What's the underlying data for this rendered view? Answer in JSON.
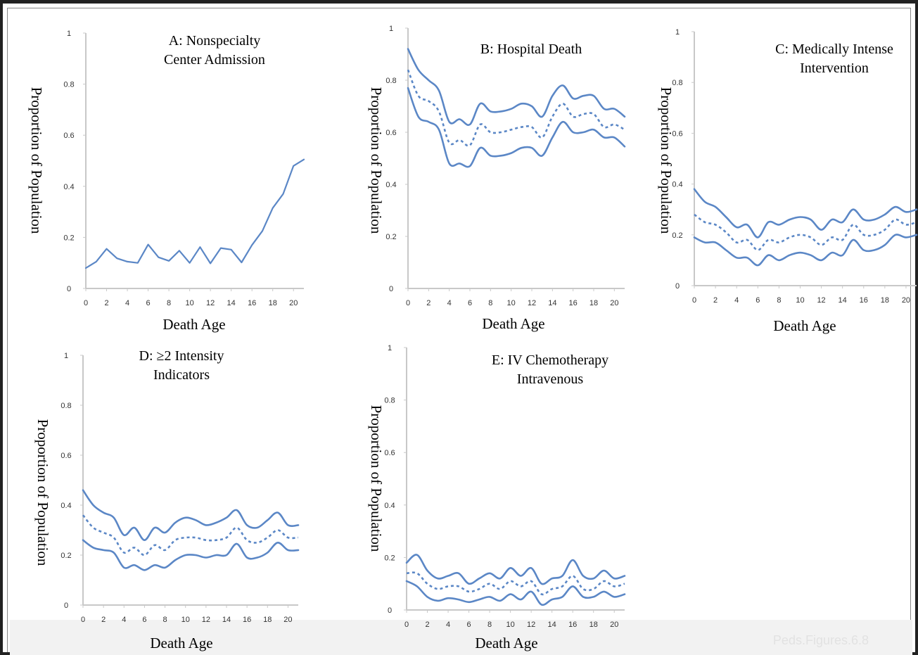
{
  "source_label": "Peds.Figures.6.8",
  "colors": {
    "series": "#5b87c6",
    "axis": "#c8c8c8",
    "text": "#000000"
  },
  "chart_data": [
    {
      "id": "A",
      "type": "line",
      "title": "A: Nonspecialty\nCenter Admission",
      "xlabel": "Death Age",
      "ylabel": "Proportion of Population",
      "xlim": [
        0,
        21
      ],
      "ylim": [
        0,
        1
      ],
      "x_ticks": [
        0,
        2,
        4,
        6,
        8,
        10,
        12,
        14,
        16,
        18,
        20
      ],
      "y_ticks": [
        0,
        0.2,
        0.4,
        0.6,
        0.8,
        1
      ],
      "y_tick_labels": [
        "0",
        "0.2",
        "0.4",
        "0.6",
        "0.8",
        "1"
      ],
      "x": [
        0,
        1,
        2,
        3,
        4,
        5,
        6,
        7,
        8,
        9,
        10,
        11,
        12,
        13,
        14,
        15,
        16,
        17,
        18,
        19,
        20,
        21
      ],
      "series": [
        {
          "values": [
            0.08,
            0.105,
            0.155,
            0.118,
            0.105,
            0.1,
            0.172,
            0.122,
            0.108,
            0.148,
            0.1,
            0.162,
            0.098,
            0.158,
            0.152,
            0.102,
            0.17,
            0.225,
            0.315,
            0.37,
            0.48,
            0.505
          ],
          "style": "solid"
        }
      ]
    },
    {
      "id": "B",
      "type": "line",
      "title": "B:  Hospital Death",
      "xlabel": "Death Age",
      "ylabel": "Proportion of Population",
      "xlim": [
        0,
        21
      ],
      "ylim": [
        0,
        1
      ],
      "x_ticks": [
        0,
        2,
        4,
        6,
        8,
        10,
        12,
        14,
        16,
        18,
        20
      ],
      "y_ticks": [
        0,
        0.2,
        0.4,
        0.6,
        0.8,
        1
      ],
      "y_tick_labels": [
        "0",
        "0.2",
        "0.4",
        "0.6",
        "0.8",
        "1"
      ],
      "x": [
        0,
        1,
        2,
        3,
        4,
        5,
        6,
        7,
        8,
        9,
        10,
        11,
        12,
        13,
        14,
        15,
        16,
        17,
        18,
        19,
        20,
        21
      ],
      "series": [
        {
          "values": [
            0.92,
            0.84,
            0.8,
            0.76,
            0.64,
            0.65,
            0.63,
            0.71,
            0.68,
            0.68,
            0.69,
            0.71,
            0.7,
            0.66,
            0.74,
            0.78,
            0.73,
            0.74,
            0.74,
            0.69,
            0.69,
            0.66
          ],
          "style": "solid"
        },
        {
          "values": [
            0.84,
            0.74,
            0.72,
            0.68,
            0.56,
            0.57,
            0.55,
            0.63,
            0.6,
            0.6,
            0.61,
            0.62,
            0.62,
            0.58,
            0.66,
            0.71,
            0.66,
            0.67,
            0.67,
            0.62,
            0.63,
            0.61
          ],
          "style": "dashed"
        },
        {
          "values": [
            0.77,
            0.66,
            0.64,
            0.61,
            0.48,
            0.48,
            0.47,
            0.54,
            0.51,
            0.51,
            0.52,
            0.54,
            0.54,
            0.51,
            0.58,
            0.64,
            0.6,
            0.6,
            0.61,
            0.58,
            0.58,
            0.545
          ],
          "style": "solid"
        }
      ]
    },
    {
      "id": "C",
      "type": "line",
      "title": "C:  Medically Intense\nIntervention",
      "xlabel": "Death Age",
      "ylabel": "Proportion of Population",
      "xlim": [
        0,
        21
      ],
      "ylim": [
        0,
        1
      ],
      "x_ticks": [
        0,
        2,
        4,
        6,
        8,
        10,
        12,
        14,
        16,
        18,
        20
      ],
      "y_ticks": [
        0,
        0.2,
        0.4,
        0.6,
        0.8,
        1
      ],
      "y_tick_labels": [
        "0",
        "0.2",
        "0.4",
        "0.6",
        "0.8",
        "1"
      ],
      "x": [
        0,
        1,
        2,
        3,
        4,
        5,
        6,
        7,
        8,
        9,
        10,
        11,
        12,
        13,
        14,
        15,
        16,
        17,
        18,
        19,
        20,
        21
      ],
      "series": [
        {
          "values": [
            0.38,
            0.33,
            0.31,
            0.27,
            0.23,
            0.24,
            0.19,
            0.25,
            0.24,
            0.26,
            0.27,
            0.26,
            0.22,
            0.26,
            0.25,
            0.3,
            0.26,
            0.26,
            0.28,
            0.31,
            0.29,
            0.3
          ],
          "style": "solid"
        },
        {
          "values": [
            0.28,
            0.25,
            0.24,
            0.21,
            0.17,
            0.18,
            0.14,
            0.18,
            0.17,
            0.19,
            0.2,
            0.19,
            0.16,
            0.19,
            0.18,
            0.24,
            0.2,
            0.2,
            0.22,
            0.26,
            0.24,
            0.25
          ],
          "style": "dashed"
        },
        {
          "values": [
            0.19,
            0.17,
            0.17,
            0.14,
            0.11,
            0.11,
            0.08,
            0.12,
            0.1,
            0.12,
            0.13,
            0.12,
            0.1,
            0.13,
            0.12,
            0.18,
            0.14,
            0.14,
            0.16,
            0.2,
            0.19,
            0.2
          ],
          "style": "solid"
        }
      ]
    },
    {
      "id": "D",
      "type": "line",
      "title": "D: ≥2 Intensity\nIndicators",
      "xlabel": "Death Age",
      "ylabel": "Proportion of Population",
      "xlim": [
        0,
        21
      ],
      "ylim": [
        0,
        1
      ],
      "x_ticks": [
        0,
        2,
        4,
        6,
        8,
        10,
        12,
        14,
        16,
        18,
        20
      ],
      "y_ticks": [
        0,
        0.2,
        0.4,
        0.6,
        0.8,
        1
      ],
      "y_tick_labels": [
        "0",
        "0.2",
        "0.4",
        "0.6",
        "0.8",
        "1"
      ],
      "x": [
        0,
        1,
        2,
        3,
        4,
        5,
        6,
        7,
        8,
        9,
        10,
        11,
        12,
        13,
        14,
        15,
        16,
        17,
        18,
        19,
        20,
        21
      ],
      "series": [
        {
          "values": [
            0.46,
            0.4,
            0.37,
            0.35,
            0.28,
            0.31,
            0.26,
            0.31,
            0.29,
            0.33,
            0.35,
            0.34,
            0.32,
            0.33,
            0.35,
            0.38,
            0.32,
            0.31,
            0.34,
            0.37,
            0.32,
            0.32
          ],
          "style": "solid"
        },
        {
          "values": [
            0.36,
            0.31,
            0.29,
            0.27,
            0.21,
            0.23,
            0.2,
            0.24,
            0.22,
            0.26,
            0.27,
            0.27,
            0.26,
            0.26,
            0.27,
            0.31,
            0.26,
            0.25,
            0.27,
            0.3,
            0.27,
            0.27
          ],
          "style": "dashed"
        },
        {
          "values": [
            0.26,
            0.23,
            0.22,
            0.21,
            0.15,
            0.16,
            0.14,
            0.16,
            0.15,
            0.18,
            0.2,
            0.2,
            0.19,
            0.2,
            0.2,
            0.245,
            0.19,
            0.19,
            0.21,
            0.25,
            0.22,
            0.22
          ],
          "style": "solid"
        }
      ]
    },
    {
      "id": "E",
      "type": "line",
      "title": "E: IV Chemotherapy\nIntravenous",
      "xlabel": "Death Age",
      "ylabel": "Proportion of Population",
      "xlim": [
        0,
        21
      ],
      "ylim": [
        0,
        1
      ],
      "x_ticks": [
        0,
        2,
        4,
        6,
        8,
        10,
        12,
        14,
        16,
        18,
        20
      ],
      "y_ticks": [
        0,
        0.2,
        0.4,
        0.6,
        0.8,
        1
      ],
      "y_tick_labels": [
        "0",
        "0.2",
        "0.4",
        "0.6",
        "0.8",
        "1"
      ],
      "x": [
        0,
        1,
        2,
        3,
        4,
        5,
        6,
        7,
        8,
        9,
        10,
        11,
        12,
        13,
        14,
        15,
        16,
        17,
        18,
        19,
        20,
        21
      ],
      "series": [
        {
          "values": [
            0.18,
            0.21,
            0.15,
            0.12,
            0.13,
            0.14,
            0.1,
            0.12,
            0.14,
            0.12,
            0.16,
            0.13,
            0.16,
            0.1,
            0.12,
            0.13,
            0.19,
            0.13,
            0.12,
            0.15,
            0.12,
            0.13
          ],
          "style": "solid"
        },
        {
          "values": [
            0.14,
            0.14,
            0.1,
            0.08,
            0.09,
            0.09,
            0.07,
            0.08,
            0.1,
            0.08,
            0.11,
            0.09,
            0.11,
            0.06,
            0.08,
            0.09,
            0.13,
            0.08,
            0.08,
            0.11,
            0.09,
            0.1
          ],
          "style": "dashed"
        },
        {
          "values": [
            0.11,
            0.09,
            0.05,
            0.035,
            0.045,
            0.04,
            0.03,
            0.04,
            0.05,
            0.035,
            0.06,
            0.04,
            0.07,
            0.02,
            0.04,
            0.05,
            0.09,
            0.05,
            0.05,
            0.07,
            0.05,
            0.06
          ],
          "style": "solid"
        }
      ]
    }
  ]
}
